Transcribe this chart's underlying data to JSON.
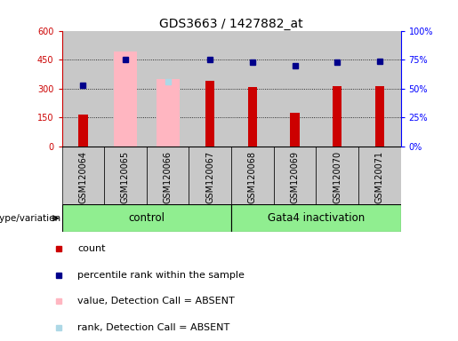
{
  "title": "GDS3663 / 1427882_at",
  "samples": [
    "GSM120064",
    "GSM120065",
    "GSM120066",
    "GSM120067",
    "GSM120068",
    "GSM120069",
    "GSM120070",
    "GSM120071"
  ],
  "red_bars": [
    165,
    0,
    0,
    340,
    310,
    175,
    315,
    315
  ],
  "pink_bars": [
    0,
    490,
    350,
    0,
    0,
    0,
    0,
    0
  ],
  "blue_squares": [
    53,
    75,
    null,
    75,
    73,
    70,
    73,
    74
  ],
  "lightblue_squares": [
    null,
    null,
    56,
    null,
    null,
    null,
    null,
    null
  ],
  "ylim_left": [
    0,
    600
  ],
  "ylim_right": [
    0,
    100
  ],
  "yticks_left": [
    0,
    150,
    300,
    450,
    600
  ],
  "yticks_right": [
    0,
    25,
    50,
    75,
    100
  ],
  "ytick_labels_right": [
    "0%",
    "25%",
    "50%",
    "75%",
    "100%"
  ],
  "col_bg": "#c8c8c8",
  "bg_white": "#ffffff",
  "green_color": "#90ee90",
  "red_color": "#cc0000",
  "pink_color": "#ffb6c1",
  "blue_color": "#00008b",
  "lightblue_color": "#add8e6",
  "title_fontsize": 10,
  "tick_fontsize": 7,
  "label_fontsize": 8,
  "legend_fontsize": 8
}
